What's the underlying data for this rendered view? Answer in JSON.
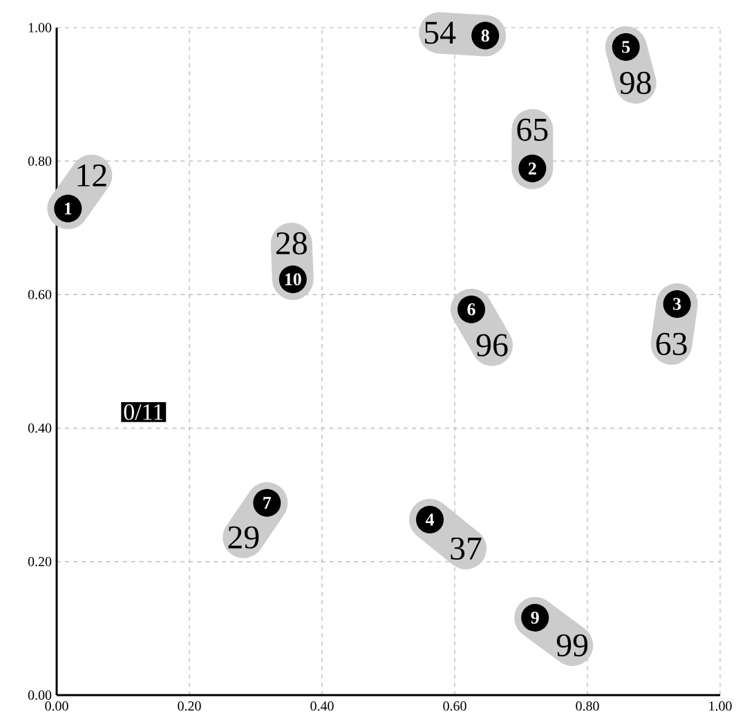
{
  "chart_data": {
    "type": "scatter",
    "series": [
      {
        "color": "#000000",
        "x": [
          0.017,
          0.717,
          0.935,
          0.5625,
          0.858,
          0.625,
          0.317,
          0.646,
          0.721,
          0.356
        ],
        "values": [
          0.729,
          0.789,
          0.586,
          0.263,
          0.971,
          0.578,
          0.288,
          0.988,
          0.116,
          0.623
        ]
      }
    ],
    "annotations": [
      {
        "text": "1",
        "x": 0.017,
        "y": 0.729
      },
      {
        "text": "2",
        "x": 0.717,
        "y": 0.789
      },
      {
        "text": "3",
        "x": 0.935,
        "y": 0.586
      },
      {
        "text": "4",
        "x": 0.5625,
        "y": 0.263
      },
      {
        "text": "5",
        "x": 0.858,
        "y": 0.971
      },
      {
        "text": "6",
        "x": 0.625,
        "y": 0.578
      },
      {
        "text": "7",
        "x": 0.317,
        "y": 0.288
      },
      {
        "text": "8",
        "x": 0.646,
        "y": 0.988
      },
      {
        "text": "9",
        "x": 0.721,
        "y": 0.116
      },
      {
        "text": "10",
        "x": 0.356,
        "y": 0.623
      },
      {
        "text": "12",
        "x": 0.017,
        "y": 0.729
      },
      {
        "text": "65",
        "x": 0.717,
        "y": 0.789
      },
      {
        "text": "63",
        "x": 0.935,
        "y": 0.586
      },
      {
        "text": "37",
        "x": 0.5625,
        "y": 0.263
      },
      {
        "text": "98",
        "x": 0.858,
        "y": 0.971
      },
      {
        "text": "96",
        "x": 0.625,
        "y": 0.578
      },
      {
        "text": "29",
        "x": 0.317,
        "y": 0.288
      },
      {
        "text": "54",
        "x": 0.646,
        "y": 0.988
      },
      {
        "text": "99",
        "x": 0.721,
        "y": 0.116
      },
      {
        "text": "28",
        "x": 0.356,
        "y": 0.623
      },
      "0/11"
    ],
    "xlim": [
      0,
      1
    ],
    "ylim": [
      0,
      1
    ],
    "xticks": [
      {
        "value": 0,
        "label": "0.00"
      },
      {
        "value": 0.2,
        "label": "0.20"
      },
      {
        "value": 0.4,
        "label": "0.40"
      },
      {
        "value": 0.6,
        "label": "0.60"
      },
      {
        "value": 0.8,
        "label": "0.80"
      },
      {
        "value": 1,
        "label": "1.00"
      }
    ],
    "yticks": [
      {
        "value": 0,
        "label": "0.00"
      },
      {
        "value": 0.2,
        "label": "0.20"
      },
      {
        "value": 0.4,
        "label": "0.40"
      },
      {
        "value": 0.6,
        "label": "0.60"
      },
      {
        "value": 0.8,
        "label": "0.80"
      },
      {
        "value": 1,
        "label": "1.00"
      }
    ],
    "grid": true,
    "marker": "circle"
  }
}
